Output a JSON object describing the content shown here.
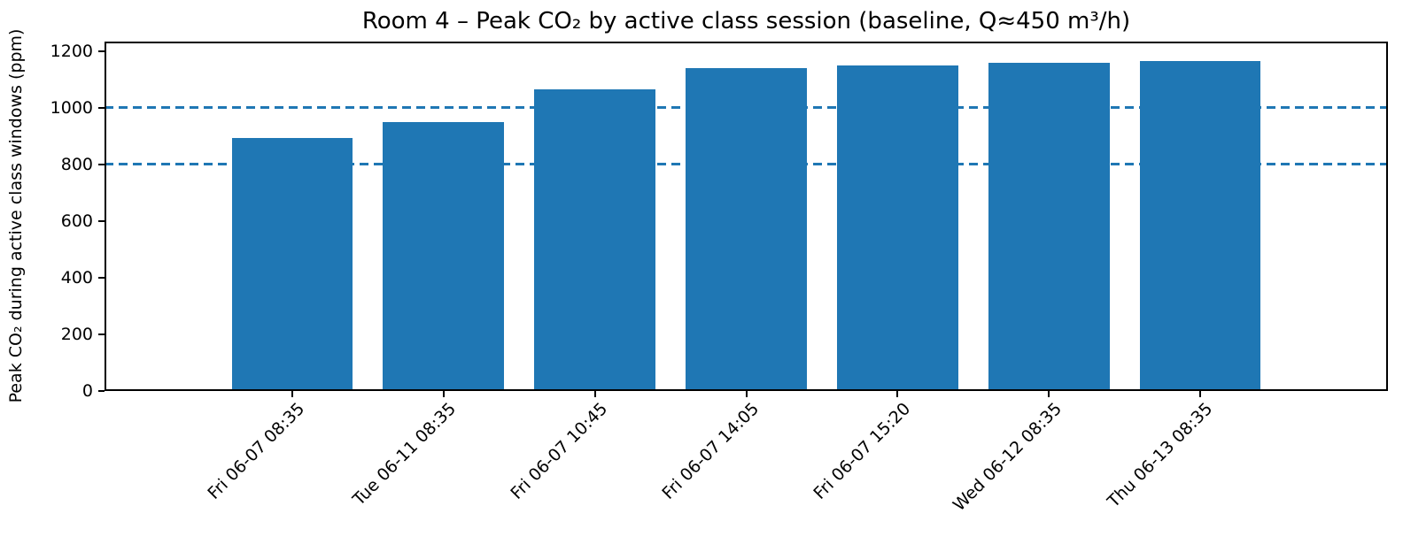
{
  "chart_data": {
    "type": "bar",
    "title": "Room 4 – Peak CO₂ by active class session (baseline, Q≈450 m³/h)",
    "xlabel": "",
    "ylabel": "Peak CO₂ during active class windows (ppm)",
    "categories": [
      "Fri 06-07 08:35",
      "Tue 06-11 08:35",
      "Fri 06-07 10:45",
      "Fri 06-07 14:05",
      "Fri 06-07 15:20",
      "Wed 06-12 08:35",
      "Thu 06-13 08:35"
    ],
    "values": [
      895,
      950,
      1065,
      1140,
      1150,
      1160,
      1165
    ],
    "yticks": [
      0,
      200,
      400,
      600,
      800,
      1000,
      1200
    ],
    "ylim": [
      0,
      1234
    ],
    "reference_lines": [
      {
        "value": 800,
        "style": "dashed"
      },
      {
        "value": 1000,
        "style": "dashed"
      }
    ],
    "bar_color": "#1f77b4",
    "reference_line_color": "#1f77b4",
    "axis_color": "#000000",
    "grid": "off",
    "legend": "none"
  }
}
